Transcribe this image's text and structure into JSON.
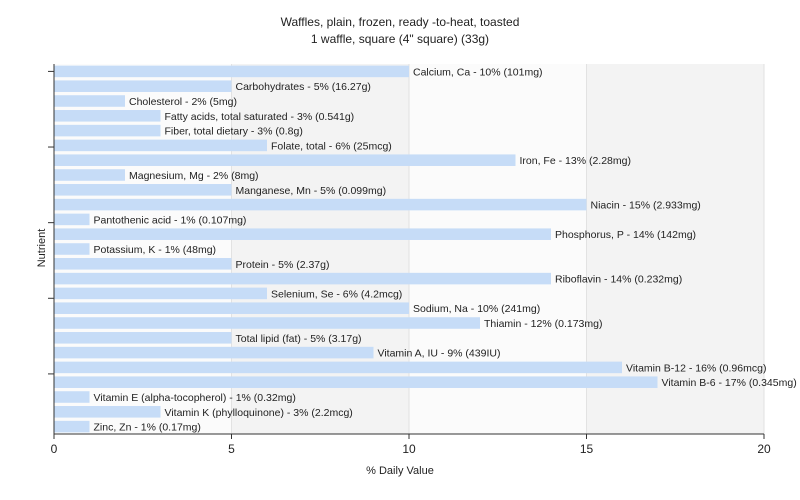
{
  "chart_data": {
    "type": "bar",
    "orientation": "horizontal",
    "title": "Waffles, plain, frozen, ready -to-heat, toasted",
    "subtitle": "1 waffle, square (4\" square) (33g)",
    "xlabel": "% Daily Value",
    "ylabel": "Nutrient",
    "xlim": [
      0,
      20
    ],
    "xticks": [
      "0",
      "5",
      "10",
      "15",
      "20"
    ],
    "grid": true,
    "bar_color": "#c6dcf7",
    "categories": [
      "Calcium, Ca",
      "Carbohydrates",
      "Cholesterol",
      "Fatty acids, total saturated",
      "Fiber, total dietary",
      "Folate, total",
      "Iron, Fe",
      "Magnesium, Mg",
      "Manganese, Mn",
      "Niacin",
      "Pantothenic acid",
      "Phosphorus, P",
      "Potassium, K",
      "Protein",
      "Riboflavin",
      "Selenium, Se",
      "Sodium, Na",
      "Thiamin",
      "Total lipid (fat)",
      "Vitamin A, IU",
      "Vitamin B-12",
      "Vitamin B-6",
      "Vitamin E (alpha-tocopherol)",
      "Vitamin K (phylloquinone)",
      "Zinc, Zn"
    ],
    "values": [
      10,
      5,
      2,
      3,
      3,
      6,
      13,
      2,
      5,
      15,
      1,
      14,
      1,
      5,
      14,
      6,
      10,
      12,
      5,
      9,
      16,
      17,
      1,
      3,
      1
    ],
    "labels": [
      "Calcium, Ca - 10% (101mg)",
      "Carbohydrates - 5% (16.27g)",
      "Cholesterol - 2% (5mg)",
      "Fatty acids, total saturated - 3% (0.541g)",
      "Fiber, total dietary - 3% (0.8g)",
      "Folate, total - 6% (25mcg)",
      "Iron, Fe - 13% (2.28mg)",
      "Magnesium, Mg - 2% (8mg)",
      "Manganese, Mn - 5% (0.099mg)",
      "Niacin - 15% (2.933mg)",
      "Pantothenic acid - 1% (0.107mg)",
      "Phosphorus, P - 14% (142mg)",
      "Potassium, K - 1% (48mg)",
      "Protein - 5% (2.37g)",
      "Riboflavin - 14% (0.232mg)",
      "Selenium, Se - 6% (4.2mcg)",
      "Sodium, Na - 10% (241mg)",
      "Thiamin - 12% (0.173mg)",
      "Total lipid (fat) - 5% (3.17g)",
      "Vitamin A, IU - 9% (439IU)",
      "Vitamin B-12 - 16% (0.96mcg)",
      "Vitamin B-6 - 17% (0.345mg)",
      "Vitamin E (alpha-tocopherol) - 1% (0.32mg)",
      "Vitamin K (phylloquinone) - 3% (2.2mcg)",
      "Zinc, Zn - 1% (0.17mg)"
    ]
  }
}
